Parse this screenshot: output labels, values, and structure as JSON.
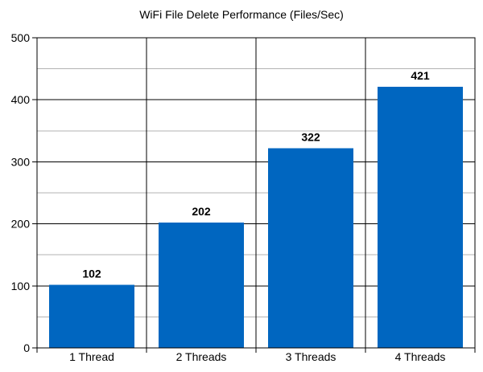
{
  "chart_data": {
    "type": "bar",
    "title": "WiFi File Delete Performance (Files/Sec)",
    "xlabel": "",
    "ylabel": "",
    "categories": [
      "1 Thread",
      "2 Threads",
      "3 Threads",
      "4 Threads"
    ],
    "values": [
      102,
      202,
      322,
      421
    ],
    "data_labels": [
      "102",
      "202",
      "322",
      "421"
    ],
    "ylim": [
      0,
      500
    ],
    "yticks": [
      0,
      100,
      200,
      300,
      400,
      500
    ],
    "ytick_labels": [
      "0",
      "100",
      "200",
      "300",
      "400",
      "500"
    ],
    "grid": true,
    "legend": "none",
    "colors": {
      "bar": "#0066c0",
      "major_grid": "#000000",
      "minor_grid": "#b3b3b3",
      "text": "#000000"
    }
  }
}
